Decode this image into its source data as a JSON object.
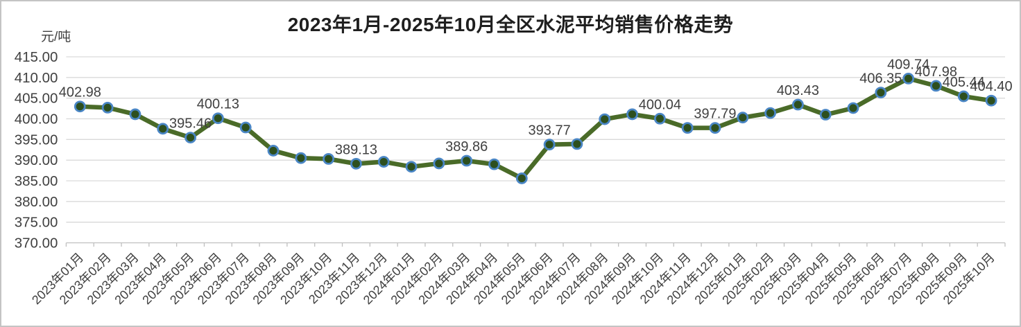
{
  "chart_data": {
    "type": "line",
    "title": "2023年1月-2025年10月全区水泥平均销售价格走势",
    "unit_label": "元/吨",
    "xlabel": "",
    "ylabel": "元/吨",
    "ylim": [
      370,
      415
    ],
    "ytick_step": 5,
    "ytick_labels": [
      "415.00",
      "410.00",
      "405.00",
      "400.00",
      "395.00",
      "390.00",
      "385.00",
      "380.00",
      "375.00",
      "370.00"
    ],
    "grid": true,
    "legend": false,
    "categories": [
      "2023年01月",
      "2023年02月",
      "2023年03月",
      "2023年04月",
      "2023年05月",
      "2023年06月",
      "2023年07月",
      "2023年08月",
      "2023年09月",
      "2023年10月",
      "2023年11月",
      "2023年12月",
      "2024年01月",
      "2024年02月",
      "2024年03月",
      "2024年04月",
      "2024年05月",
      "2024年06月",
      "2024年07月",
      "2024年08月",
      "2024年09月",
      "2024年10月",
      "2024年11月",
      "2024年12月",
      "2025年01月",
      "2025年02月",
      "2025年03月",
      "2025年04月",
      "2025年05月",
      "2025年06月",
      "2025年07月",
      "2025年08月",
      "2025年09月",
      "2025年10月"
    ],
    "series": [
      {
        "name": "全区水泥平均销售价格",
        "values": [
          402.98,
          402.7,
          401.1,
          397.6,
          395.46,
          400.13,
          397.9,
          392.3,
          390.5,
          390.3,
          389.13,
          389.6,
          388.4,
          389.2,
          389.86,
          389.0,
          385.6,
          393.77,
          393.9,
          399.9,
          401.1,
          400.04,
          397.8,
          397.79,
          400.3,
          401.4,
          403.43,
          401.0,
          402.6,
          406.35,
          409.74,
          407.98,
          405.44,
          404.4
        ],
        "data_labels": [
          "402.98",
          null,
          null,
          null,
          "395.46",
          "400.13",
          null,
          null,
          null,
          null,
          "389.13",
          null,
          null,
          null,
          "389.86",
          null,
          null,
          "393.77",
          null,
          null,
          null,
          "400.04",
          null,
          "397.79",
          null,
          null,
          "403.43",
          null,
          null,
          "406.35",
          "409.74",
          "407.98",
          "405.44",
          "404.40"
        ]
      }
    ],
    "colors": {
      "line": "#4a6b28",
      "marker_fill": "#2d4f1e",
      "marker_ring": "#4a86c5",
      "gridline": "#d9d9d9",
      "axis_line": "#bfbfbf",
      "tick_text": "#404040",
      "data_label_text": "#404040",
      "title_text": "#1f1f1f"
    }
  }
}
